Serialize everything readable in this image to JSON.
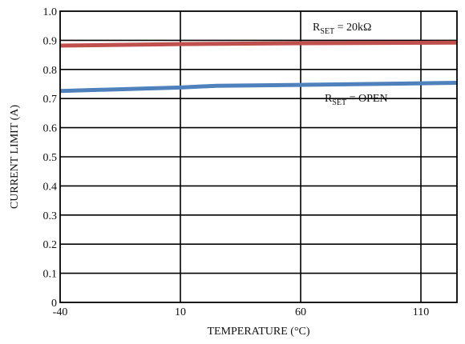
{
  "chart_data": {
    "type": "line",
    "xlabel": "TEMPERATURE (°C)",
    "ylabel": "CURRENT LIMIT (A)",
    "xlim": [
      -40,
      125
    ],
    "ylim": [
      0,
      1.0
    ],
    "x_ticks": [
      -40,
      10,
      60,
      110
    ],
    "x_tick_labels": [
      "-40",
      "10",
      "60",
      "110"
    ],
    "y_ticks": [
      0,
      0.1,
      0.2,
      0.3,
      0.4,
      0.5,
      0.6,
      0.7,
      0.8,
      0.9,
      1.0
    ],
    "y_tick_labels": [
      "0",
      "0.1",
      "0.2",
      "0.3",
      "0.4",
      "0.5",
      "0.6",
      "0.7",
      "0.8",
      "0.9",
      "1.0"
    ],
    "grid": true,
    "series": [
      {
        "label_main": "R",
        "label_sub": "SET",
        "label_rest": " = 20kΩ",
        "color": "#c0504d",
        "x": [
          -40,
          10,
          60,
          125
        ],
        "y": [
          0.882,
          0.887,
          0.89,
          0.892
        ]
      },
      {
        "label_main": "R",
        "label_sub": "SET",
        "label_rest": " = OPEN",
        "color": "#4f81bd",
        "x": [
          -40,
          10,
          25,
          60,
          125
        ],
        "y": [
          0.726,
          0.738,
          0.744,
          0.747,
          0.754
        ]
      }
    ]
  }
}
